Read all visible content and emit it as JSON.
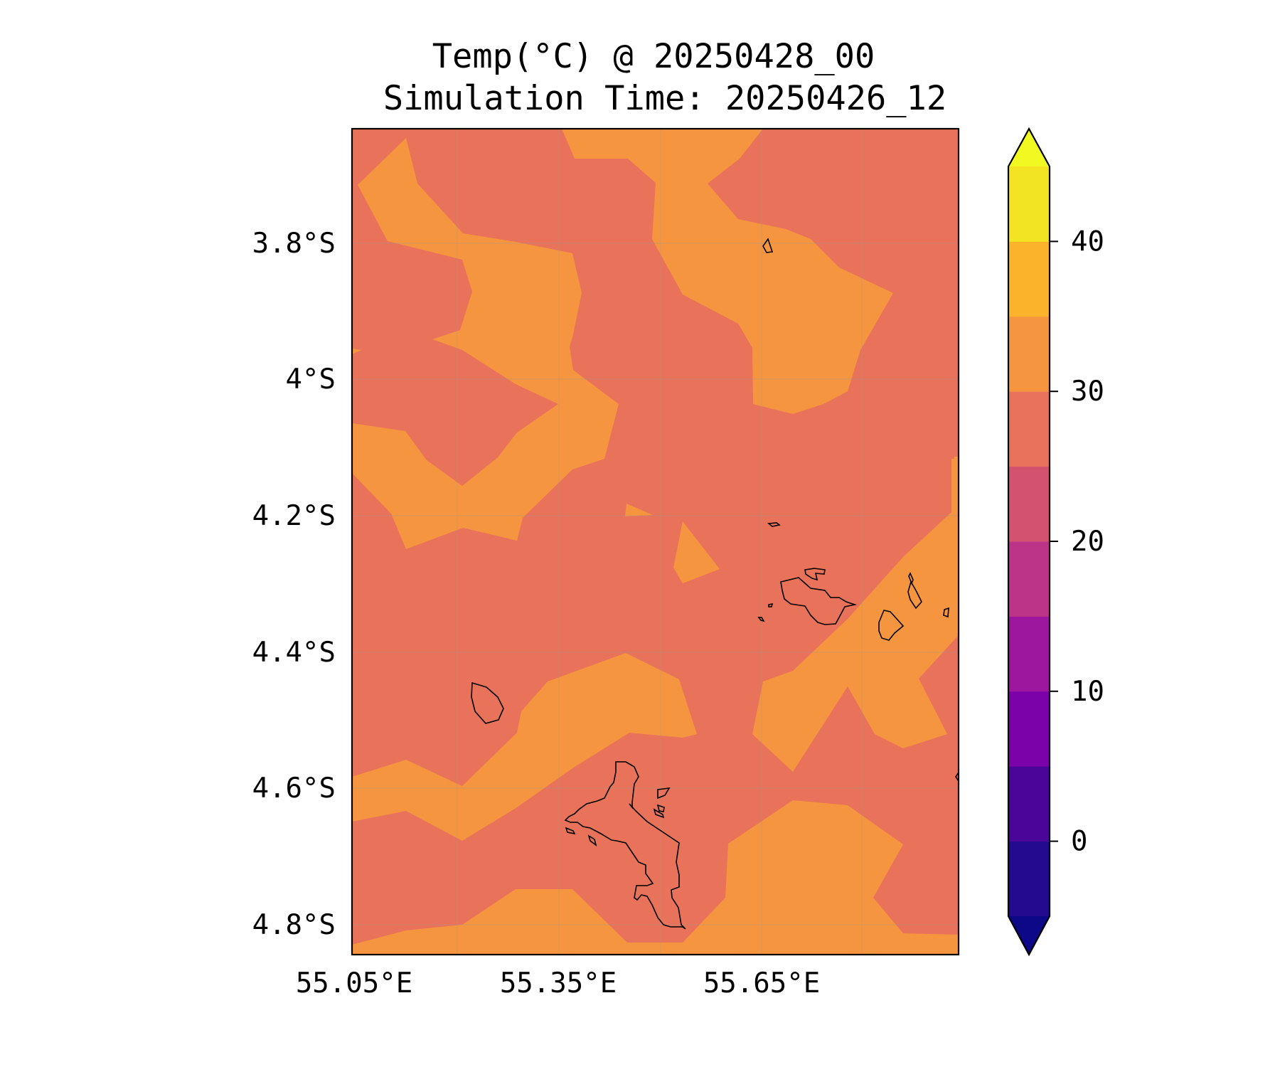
{
  "title": {
    "line1": "Temp(°C) @ 20250428_00",
    "line2": "Simulation Time: 20250426_12"
  },
  "map": {
    "variable": "Temp(°C)",
    "valid_time": "20250428_00",
    "simulation_time": "20250426_12",
    "y_tick_labels": [
      "3.8°S",
      "4°S",
      "4.2°S",
      "4.4°S",
      "4.6°S",
      "4.8°S"
    ],
    "x_tick_labels": [
      "55.05°E",
      "55.35°E",
      "55.65°E"
    ],
    "y_ticks": [
      -3.8,
      -4.0,
      -4.2,
      -4.4,
      -4.6,
      -4.8
    ],
    "x_ticks": [
      55.05,
      55.35,
      55.65
    ],
    "lon_range": [
      55.05,
      55.95
    ],
    "lat_range": [
      -4.84,
      -3.63
    ],
    "gridlines": true,
    "coastlines": true,
    "regions": [
      {
        "range": "25–30",
        "color": "#e8735a",
        "role": "background"
      },
      {
        "range": "30–35",
        "color": "#f5953f",
        "role": "warm patches"
      }
    ]
  },
  "colorbar": {
    "tick_labels": [
      "40",
      "30",
      "20",
      "10",
      "0"
    ],
    "ticks": [
      40,
      30,
      20,
      10,
      0
    ],
    "range": [
      -5,
      45
    ],
    "extend": "both",
    "bins": [
      {
        "from": -5,
        "to": 0,
        "color": "#230a8e"
      },
      {
        "from": 0,
        "to": 5,
        "color": "#4a0599"
      },
      {
        "from": 5,
        "to": 10,
        "color": "#7a02a8"
      },
      {
        "from": 10,
        "to": 15,
        "color": "#9d179e"
      },
      {
        "from": 15,
        "to": 20,
        "color": "#bb3488"
      },
      {
        "from": 20,
        "to": 25,
        "color": "#d25270"
      },
      {
        "from": 25,
        "to": 30,
        "color": "#e8735a"
      },
      {
        "from": 30,
        "to": 35,
        "color": "#f5953f"
      },
      {
        "from": 35,
        "to": 40,
        "color": "#fbb32c"
      },
      {
        "from": 40,
        "to": 45,
        "color": "#f2e323"
      }
    ],
    "under_color": "#0d0887",
    "over_color": "#f0f921"
  }
}
